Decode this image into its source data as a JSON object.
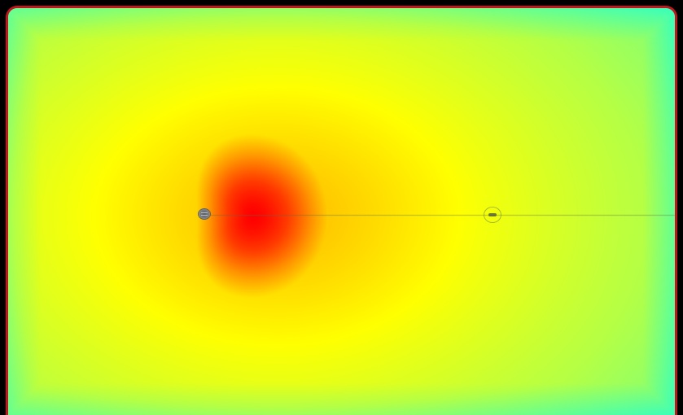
{
  "view": {
    "border_color": "#c0161c",
    "background_color": "#000000"
  },
  "heatmap": {
    "palette": [
      "#00e8ff",
      "#28ffd0",
      "#b8ff40",
      "#ffff00",
      "#ff9a00",
      "#ff0000"
    ],
    "hotspot_color": "#ff0000",
    "edge_color": "#00d8ff"
  },
  "markers": {
    "left": {
      "icon": "source-probe-icon"
    },
    "right": {
      "icon": "target-probe-icon"
    }
  }
}
